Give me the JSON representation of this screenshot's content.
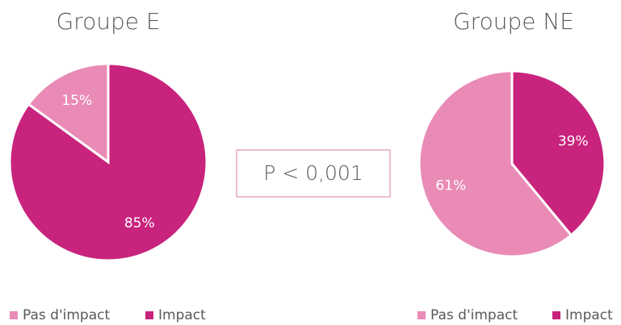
{
  "chart_data": [
    {
      "type": "pie",
      "title": "Groupe E",
      "categories": [
        "Pas d'impact",
        "Impact"
      ],
      "values": [
        15,
        85
      ],
      "value_labels": [
        "15%",
        "85%"
      ],
      "colors": [
        "#e98bb6",
        "#c8237d"
      ],
      "legend": "bottom"
    },
    {
      "type": "pie",
      "title": "Groupe NE",
      "categories": [
        "Pas d'impact",
        "Impact"
      ],
      "values": [
        61,
        39
      ],
      "value_labels": [
        "61%",
        "39%"
      ],
      "colors": [
        "#e98bb6",
        "#c8237d"
      ],
      "legend": "bottom"
    }
  ],
  "annotation": "P < 0,001"
}
